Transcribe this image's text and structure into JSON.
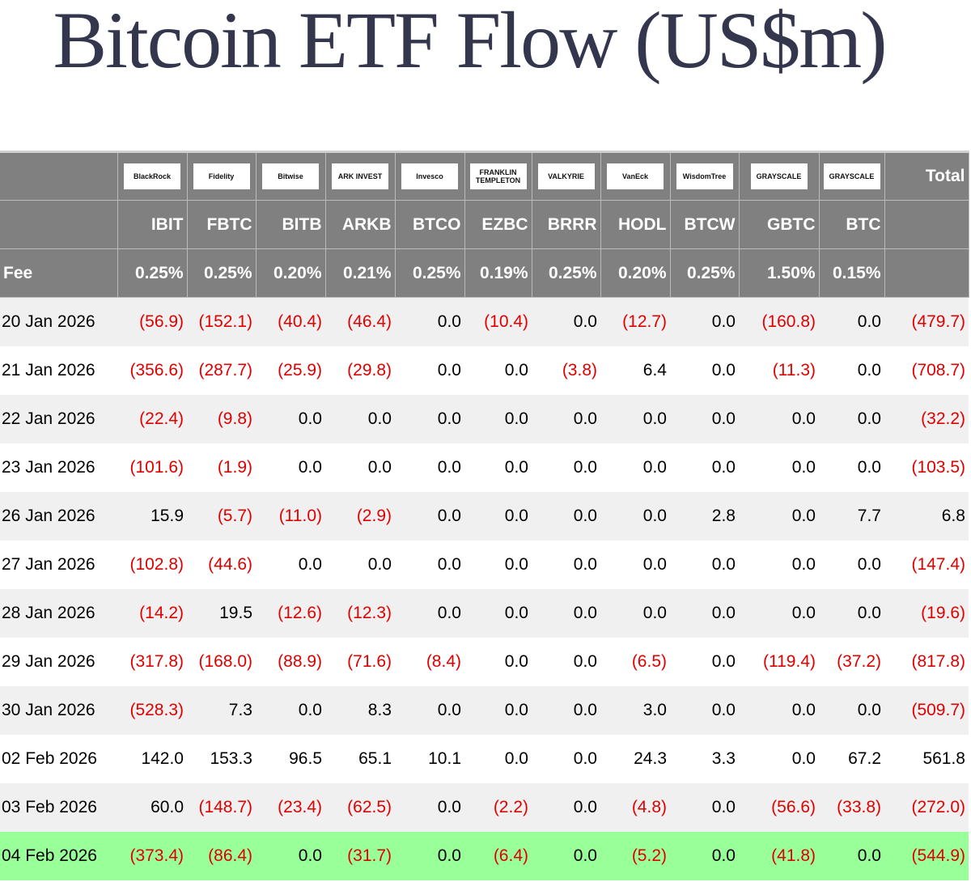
{
  "title": "Bitcoin ETF Flow (US$m)",
  "colors": {
    "header_bg": "#808080",
    "negative": "#e00000",
    "highlight_row": "#99ff99",
    "title": "#33364d"
  },
  "issuers": [
    "BlackRock",
    "Fidelity",
    "Bitwise",
    "ARK INVEST",
    "Invesco",
    "FRANKLIN TEMPLETON",
    "VALKYRIE",
    "VanEck",
    "WisdomTree",
    "GRAYSCALE",
    "GRAYSCALE"
  ],
  "total_label": "Total",
  "tickers": [
    "IBIT",
    "FBTC",
    "BITB",
    "ARKB",
    "BTCO",
    "EZBC",
    "BRRR",
    "HODL",
    "BTCW",
    "GBTC",
    "BTC"
  ],
  "fee_label": "Fee",
  "fees": [
    "0.25%",
    "0.25%",
    "0.20%",
    "0.21%",
    "0.25%",
    "0.19%",
    "0.25%",
    "0.20%",
    "0.25%",
    "1.50%",
    "0.15%"
  ],
  "rows": [
    {
      "date": "20 Jan 2026",
      "values": [
        "(56.9)",
        "(152.1)",
        "(40.4)",
        "(46.4)",
        "0.0",
        "(10.4)",
        "0.0",
        "(12.7)",
        "0.0",
        "(160.8)",
        "0.0",
        "(479.7)"
      ]
    },
    {
      "date": "21 Jan 2026",
      "values": [
        "(356.6)",
        "(287.7)",
        "(25.9)",
        "(29.8)",
        "0.0",
        "0.0",
        "(3.8)",
        "6.4",
        "0.0",
        "(11.3)",
        "0.0",
        "(708.7)"
      ]
    },
    {
      "date": "22 Jan 2026",
      "values": [
        "(22.4)",
        "(9.8)",
        "0.0",
        "0.0",
        "0.0",
        "0.0",
        "0.0",
        "0.0",
        "0.0",
        "0.0",
        "0.0",
        "(32.2)"
      ]
    },
    {
      "date": "23 Jan 2026",
      "values": [
        "(101.6)",
        "(1.9)",
        "0.0",
        "0.0",
        "0.0",
        "0.0",
        "0.0",
        "0.0",
        "0.0",
        "0.0",
        "0.0",
        "(103.5)"
      ]
    },
    {
      "date": "26 Jan 2026",
      "values": [
        "15.9",
        "(5.7)",
        "(11.0)",
        "(2.9)",
        "0.0",
        "0.0",
        "0.0",
        "0.0",
        "2.8",
        "0.0",
        "7.7",
        "6.8"
      ]
    },
    {
      "date": "27 Jan 2026",
      "values": [
        "(102.8)",
        "(44.6)",
        "0.0",
        "0.0",
        "0.0",
        "0.0",
        "0.0",
        "0.0",
        "0.0",
        "0.0",
        "0.0",
        "(147.4)"
      ]
    },
    {
      "date": "28 Jan 2026",
      "values": [
        "(14.2)",
        "19.5",
        "(12.6)",
        "(12.3)",
        "0.0",
        "0.0",
        "0.0",
        "0.0",
        "0.0",
        "0.0",
        "0.0",
        "(19.6)"
      ]
    },
    {
      "date": "29 Jan 2026",
      "values": [
        "(317.8)",
        "(168.0)",
        "(88.9)",
        "(71.6)",
        "(8.4)",
        "0.0",
        "0.0",
        "(6.5)",
        "0.0",
        "(119.4)",
        "(37.2)",
        "(817.8)"
      ]
    },
    {
      "date": "30 Jan 2026",
      "values": [
        "(528.3)",
        "7.3",
        "0.0",
        "8.3",
        "0.0",
        "0.0",
        "0.0",
        "3.0",
        "0.0",
        "0.0",
        "0.0",
        "(509.7)"
      ]
    },
    {
      "date": "02 Feb 2026",
      "values": [
        "142.0",
        "153.3",
        "96.5",
        "65.1",
        "10.1",
        "0.0",
        "0.0",
        "24.3",
        "3.3",
        "0.0",
        "67.2",
        "561.8"
      ]
    },
    {
      "date": "03 Feb 2026",
      "values": [
        "60.0",
        "(148.7)",
        "(23.4)",
        "(62.5)",
        "0.0",
        "(2.2)",
        "0.0",
        "(4.8)",
        "0.0",
        "(56.6)",
        "(33.8)",
        "(272.0)"
      ]
    },
    {
      "date": "04 Feb 2026",
      "values": [
        "(373.4)",
        "(86.4)",
        "0.0",
        "(31.7)",
        "0.0",
        "(6.4)",
        "0.0",
        "(5.2)",
        "0.0",
        "(41.8)",
        "0.0",
        "(544.9)"
      ],
      "highlight": true
    }
  ]
}
